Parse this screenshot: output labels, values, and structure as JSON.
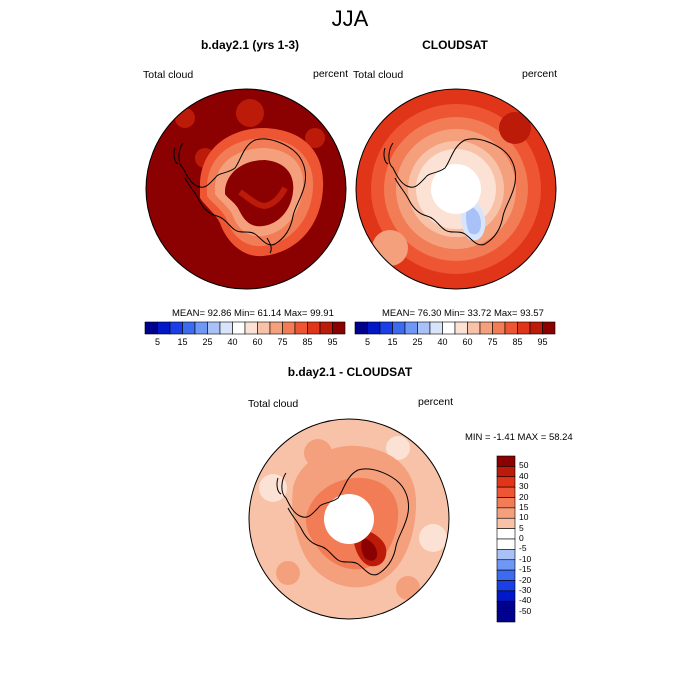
{
  "figure_title": "JJA",
  "colors": {
    "blue_ramp": [
      "#00008f",
      "#0018c8",
      "#1a3fe6",
      "#3d6bf0",
      "#6f97f5",
      "#a8c2f8",
      "#d7e4fb",
      "#fbe2d4",
      "#f8c2a8",
      "#f5a07d",
      "#f17c55",
      "#ee5533",
      "#e03518",
      "#bb1b08",
      "#8b0000"
    ],
    "white": "#ffffff",
    "coast": "#000000"
  },
  "panels": [
    {
      "title": "b.day2.1 (yrs 1-3)",
      "left_label": "Total cloud",
      "right_label": "percent",
      "stats": "MEAN=  92.86  Min=  61.14  Max=  99.91"
    },
    {
      "title": "CLOUDSAT",
      "left_label": "Total cloud",
      "right_label": "percent",
      "stats": "MEAN=  76.30  Min=  33.72  Max=  93.57"
    },
    {
      "title": "b.day2.1 - CLOUDSAT",
      "left_label": "Total cloud",
      "right_label": "percent",
      "stats": "MIN =  -1.41 MAX =  58.24"
    }
  ],
  "colorbar_top": {
    "labels": [
      "5",
      "15",
      "25",
      "40",
      "60",
      "75",
      "85",
      "95"
    ]
  },
  "colorbar_diff": {
    "labels": [
      "50",
      "40",
      "30",
      "20",
      "15",
      "10",
      "5",
      "0",
      "-5",
      "-10",
      "-15",
      "-20",
      "-30",
      "-40",
      "-50"
    ]
  }
}
